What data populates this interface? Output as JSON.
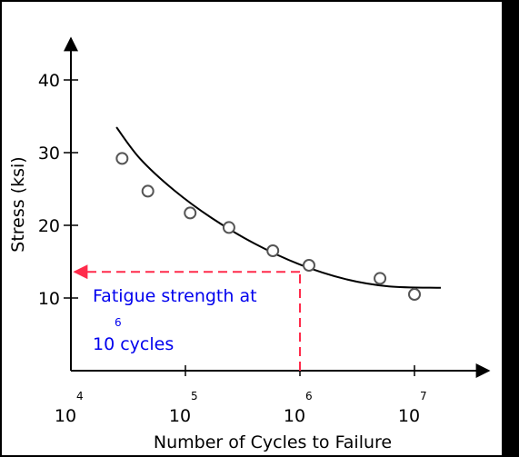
{
  "chart_data": {
    "type": "scatter",
    "title": "",
    "xlabel": "Number of Cycles to Failure",
    "ylabel": "Stress (ksi)",
    "x_scale": "log",
    "x_ticks": [
      {
        "base": "10",
        "exp": "4",
        "value": 10000
      },
      {
        "base": "10",
        "exp": "5",
        "value": 100000
      },
      {
        "base": "10",
        "exp": "6",
        "value": 1000000
      },
      {
        "base": "10",
        "exp": "7",
        "value": 10000000
      }
    ],
    "y_ticks": [
      "10",
      "20",
      "30",
      "40"
    ],
    "ylim": [
      0,
      46
    ],
    "grid": false,
    "points": [
      {
        "x": 28000,
        "y": 29.2
      },
      {
        "x": 47000,
        "y": 24.7
      },
      {
        "x": 110000,
        "y": 21.7
      },
      {
        "x": 240000,
        "y": 19.7
      },
      {
        "x": 580000,
        "y": 16.5
      },
      {
        "x": 1200000,
        "y": 14.5
      },
      {
        "x": 5000000,
        "y": 12.7
      },
      {
        "x": 10000000,
        "y": 10.5
      }
    ],
    "fit_curve": [
      {
        "x": 25000,
        "y": 33.5
      },
      {
        "x": 40000,
        "y": 29.2
      },
      {
        "x": 80000,
        "y": 24.8
      },
      {
        "x": 170000,
        "y": 21.0
      },
      {
        "x": 400000,
        "y": 17.5
      },
      {
        "x": 1000000,
        "y": 14.6
      },
      {
        "x": 2500000,
        "y": 12.6
      },
      {
        "x": 6000000,
        "y": 11.6
      },
      {
        "x": 17000000,
        "y": 11.4
      }
    ],
    "fatigue_strength": {
      "x": 1000000,
      "y": 13.6
    },
    "annotation": {
      "line1": "Fatigue strength at",
      "sup": "6",
      "line2": "10 cycles"
    }
  }
}
